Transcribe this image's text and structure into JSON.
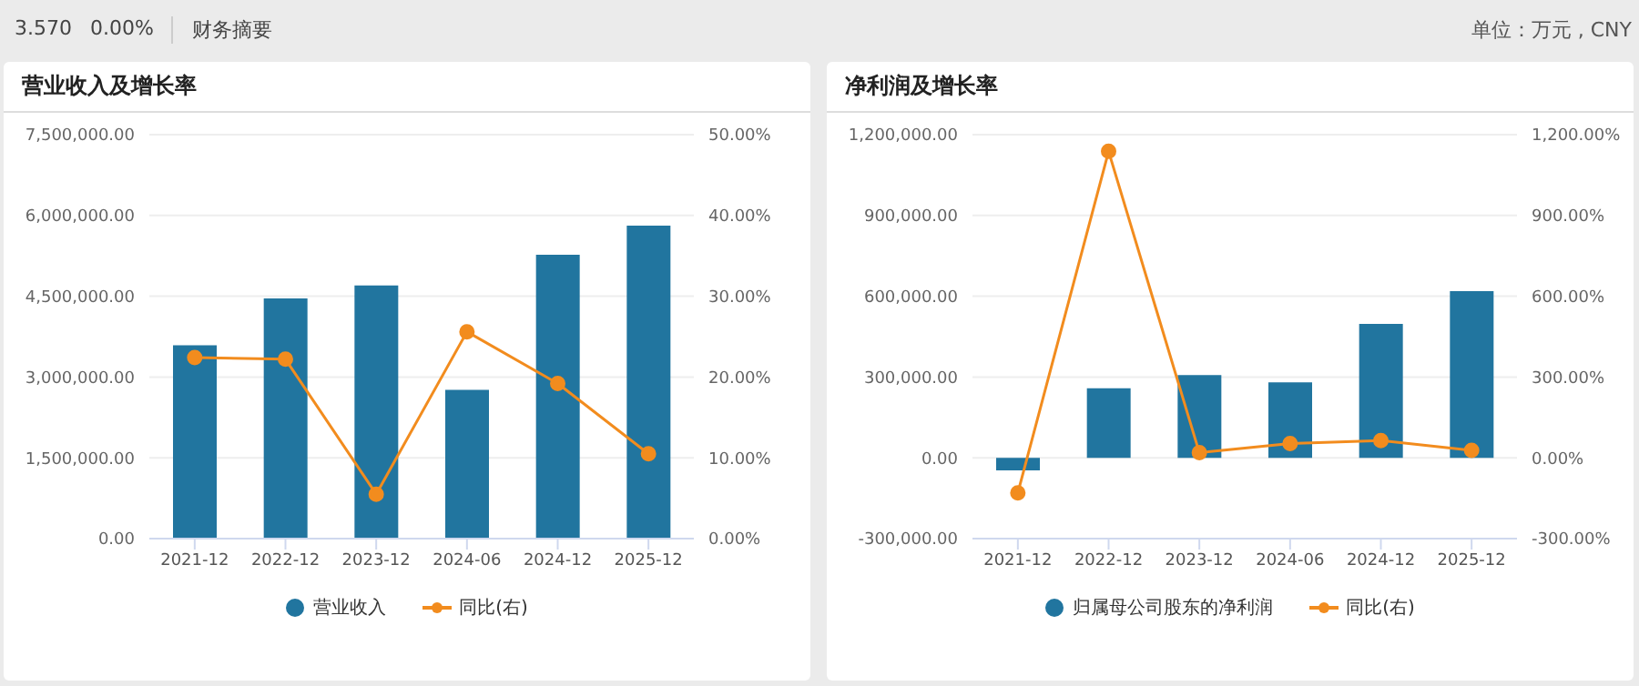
{
  "chart_data": [
    {
      "type": "bar",
      "title": "营业收入及增长率",
      "annotations": [
        "3.570",
        "0.00%",
        "财务摘要"
      ],
      "categories": [
        "2021-12",
        "2022-12",
        "2023-12",
        "2024-06",
        "2024-12",
        "2025-12"
      ],
      "series": [
        {
          "name": "营业收入",
          "color": "#21759f",
          "values": [
            3590000,
            4460000,
            4700000,
            2760000,
            5270000,
            5810000
          ]
        },
        {
          "name": "同比(右)",
          "type": "line",
          "axis": "y2",
          "color": "#f28c1e",
          "values": [
            22.4,
            22.2,
            5.5,
            25.6,
            19.2,
            10.5
          ]
        }
      ],
      "ylim": [
        0,
        7500000
      ],
      "yticks": [
        {
          "value": 0,
          "label": "0.00"
        },
        {
          "value": 1500000,
          "label": "1,500,000.00"
        },
        {
          "value": 3000000,
          "label": "3,000,000.00"
        },
        {
          "value": 4500000,
          "label": "4,500,000.00"
        },
        {
          "value": 6000000,
          "label": "6,000,000.00"
        },
        {
          "value": 7500000,
          "label": "7,500,000.00"
        }
      ],
      "y2lim": [
        0,
        50
      ],
      "y2ticks": [
        {
          "value": 0,
          "label": "0.00%"
        },
        {
          "value": 10,
          "label": "10.00%"
        },
        {
          "value": 20,
          "label": "20.00%"
        },
        {
          "value": 30,
          "label": "30.00%"
        },
        {
          "value": 40,
          "label": "40.00%"
        },
        {
          "value": 50,
          "label": "50.00%"
        }
      ],
      "grid": "y",
      "legend": "bottom",
      "marker": "circle",
      "line_style": "solid"
    },
    {
      "type": "bar",
      "title": "净利润及增长率",
      "annotations": [
        "单位：万元 , CNY"
      ],
      "categories": [
        "2021-12",
        "2022-12",
        "2023-12",
        "2024-06",
        "2024-12",
        "2025-12"
      ],
      "series": [
        {
          "name": "归属母公司股东的净利润",
          "color": "#21759f",
          "values": [
            -47000,
            258000,
            307000,
            280000,
            497000,
            619000
          ]
        },
        {
          "name": "同比(右)",
          "type": "line",
          "axis": "y2",
          "color": "#f28c1e",
          "values": [
            -130,
            1138,
            19,
            53,
            64,
            28
          ]
        }
      ],
      "ylim": [
        -300000,
        1200000
      ],
      "yticks": [
        {
          "value": -300000,
          "label": "-300,000.00"
        },
        {
          "value": 0,
          "label": "0.00"
        },
        {
          "value": 300000,
          "label": "300,000.00"
        },
        {
          "value": 600000,
          "label": "600,000.00"
        },
        {
          "value": 900000,
          "label": "900,000.00"
        },
        {
          "value": 1200000,
          "label": "1,200,000.00"
        }
      ],
      "y2lim": [
        -300,
        1200
      ],
      "y2ticks": [
        {
          "value": -300,
          "label": "-300.00%"
        },
        {
          "value": 0,
          "label": "0.00%"
        },
        {
          "value": 300,
          "label": "300.00%"
        },
        {
          "value": 600,
          "label": "600.00%"
        },
        {
          "value": 900,
          "label": "900.00%"
        },
        {
          "value": 1200,
          "label": "1,200.00%"
        }
      ],
      "grid": "y",
      "legend": "bottom",
      "marker": "circle",
      "line_style": "solid"
    }
  ]
}
